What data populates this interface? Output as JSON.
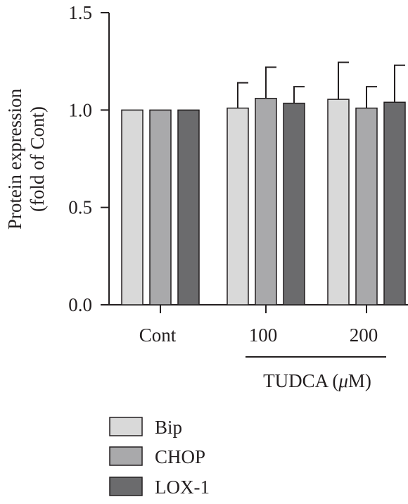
{
  "chart_data": {
    "type": "bar",
    "title": "",
    "ylabel_lines": [
      "Protein expression",
      "(fold of Cont)"
    ],
    "xlabel": "",
    "categories": [
      "Cont",
      "100",
      "200"
    ],
    "group_label": "TUDCA (μM)",
    "group_label_parts": {
      "pre": "TUDCA (",
      "mu": "μ",
      "post": "M)"
    },
    "ylim": [
      0,
      1.5
    ],
    "yticks": [
      "0.0",
      "0.5",
      "1.0",
      "1.5"
    ],
    "yticks_values": [
      0,
      0.5,
      1.0,
      1.5
    ],
    "grid": false,
    "legend_position": "bottom-left",
    "series": [
      {
        "name": "Bip",
        "color": "#d9d9d9",
        "values": [
          1.0,
          1.01,
          1.055
        ],
        "errors": [
          0,
          0.13,
          0.19
        ]
      },
      {
        "name": "CHOP",
        "color": "#a9a9ab",
        "values": [
          1.0,
          1.06,
          1.01
        ],
        "errors": [
          0,
          0.16,
          0.11
        ]
      },
      {
        "name": "LOX-1",
        "color": "#6b6b6d",
        "values": [
          1.0,
          1.035,
          1.04
        ],
        "errors": [
          0,
          0.085,
          0.19
        ]
      }
    ]
  }
}
